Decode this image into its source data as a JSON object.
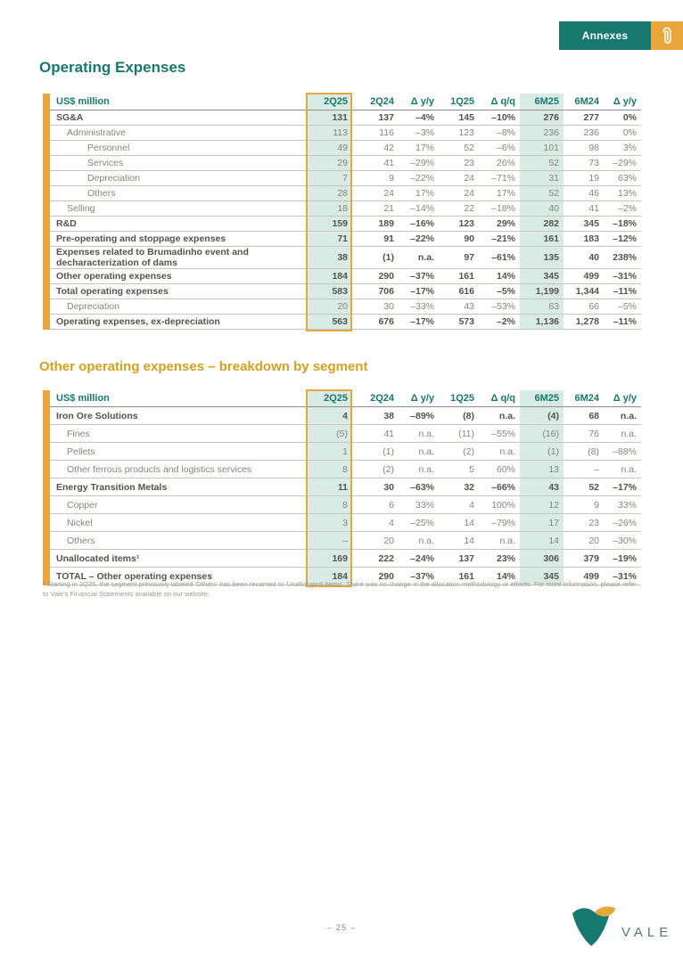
{
  "header": {
    "annexes_label": "Annexes",
    "paperclip_icon": "paperclip"
  },
  "colors": {
    "teal": "#17786F",
    "gold": "#E9A63B",
    "mint": "#D8ECE5",
    "title_gold": "#D6A01C"
  },
  "section1": {
    "title": "Operating Expenses",
    "table": {
      "unit_label": "US$ million",
      "columns": [
        "2Q25",
        "2Q24",
        "Δ y/y",
        "1Q25",
        "Δ q/q",
        "6M25",
        "6M24",
        "Δ y/y"
      ],
      "rows": [
        {
          "label": "SG&A",
          "bold": true,
          "indent": 0,
          "values": [
            "131",
            "137",
            "–4%",
            "145",
            "–10%",
            "276",
            "277",
            "0%"
          ]
        },
        {
          "label": "Administrative",
          "bold": false,
          "indent": 1,
          "values": [
            "113",
            "116",
            "–3%",
            "123",
            "–8%",
            "236",
            "236",
            "0%"
          ]
        },
        {
          "label": "Personnel",
          "bold": false,
          "indent": 2,
          "values": [
            "49",
            "42",
            "17%",
            "52",
            "–6%",
            "101",
            "98",
            "3%"
          ]
        },
        {
          "label": "Services",
          "bold": false,
          "indent": 2,
          "values": [
            "29",
            "41",
            "–29%",
            "23",
            "26%",
            "52",
            "73",
            "–29%"
          ]
        },
        {
          "label": "Depreciation",
          "bold": false,
          "indent": 2,
          "values": [
            "7",
            "9",
            "–22%",
            "24",
            "–71%",
            "31",
            "19",
            "63%"
          ]
        },
        {
          "label": "Others",
          "bold": false,
          "indent": 2,
          "values": [
            "28",
            "24",
            "17%",
            "24",
            "17%",
            "52",
            "46",
            "13%"
          ]
        },
        {
          "label": "Selling",
          "bold": false,
          "indent": 1,
          "values": [
            "18",
            "21",
            "–14%",
            "22",
            "–18%",
            "40",
            "41",
            "–2%"
          ]
        },
        {
          "label": "R&D",
          "bold": true,
          "indent": 0,
          "values": [
            "159",
            "189",
            "–16%",
            "123",
            "29%",
            "282",
            "345",
            "–18%"
          ]
        },
        {
          "label": "Pre-operating and stoppage expenses",
          "bold": true,
          "indent": 0,
          "values": [
            "71",
            "91",
            "–22%",
            "90",
            "–21%",
            "161",
            "183",
            "–12%"
          ]
        },
        {
          "label": "Expenses related to Brumadinho event and decharacterization of dams",
          "bold": true,
          "indent": 0,
          "values": [
            "38",
            "(1)",
            "n.a.",
            "97",
            "–61%",
            "135",
            "40",
            "238%"
          ]
        },
        {
          "label": "Other operating expenses",
          "bold": true,
          "indent": 0,
          "values": [
            "184",
            "290",
            "–37%",
            "161",
            "14%",
            "345",
            "499",
            "–31%"
          ]
        },
        {
          "label": "Total operating expenses",
          "bold": true,
          "indent": 0,
          "values": [
            "583",
            "706",
            "–17%",
            "616",
            "–5%",
            "1,199",
            "1,344",
            "–11%"
          ]
        },
        {
          "label": "Depreciation",
          "bold": false,
          "indent": 1,
          "values": [
            "20",
            "30",
            "–33%",
            "43",
            "–53%",
            "63",
            "66",
            "–5%"
          ]
        },
        {
          "label": "Operating expenses, ex-depreciation",
          "bold": true,
          "indent": 0,
          "values": [
            "563",
            "676",
            "–17%",
            "573",
            "–2%",
            "1,136",
            "1,278",
            "–11%"
          ]
        }
      ]
    }
  },
  "section2": {
    "title": "Other operating expenses – breakdown by segment",
    "table": {
      "unit_label": "US$ million",
      "columns": [
        "2Q25",
        "2Q24",
        "Δ y/y",
        "1Q25",
        "Δ q/q",
        "6M25",
        "6M24",
        "Δ y/y"
      ],
      "rows": [
        {
          "label": "Iron Ore Solutions",
          "bold": true,
          "indent": 0,
          "values": [
            "4",
            "38",
            "–89%",
            "(8)",
            "n.a.",
            "(4)",
            "68",
            "n.a."
          ]
        },
        {
          "label": "Fines",
          "bold": false,
          "indent": 1,
          "values": [
            "(5)",
            "41",
            "n.a.",
            "(11)",
            "–55%",
            "(16)",
            "76",
            "n.a."
          ]
        },
        {
          "label": "Pellets",
          "bold": false,
          "indent": 1,
          "values": [
            "1",
            "(1)",
            "n.a.",
            "(2)",
            "n.a.",
            "(1)",
            "(8)",
            "–88%"
          ]
        },
        {
          "label": "Other ferrous products and logistics services",
          "bold": false,
          "indent": 1,
          "values": [
            "8",
            "(2)",
            "n.a.",
            "5",
            "60%",
            "13",
            "–",
            "n.a."
          ]
        },
        {
          "label": "Energy Transition Metals",
          "bold": true,
          "indent": 0,
          "values": [
            "11",
            "30",
            "–63%",
            "32",
            "–66%",
            "43",
            "52",
            "–17%"
          ]
        },
        {
          "label": "Copper",
          "bold": false,
          "indent": 1,
          "values": [
            "8",
            "6",
            "33%",
            "4",
            "100%",
            "12",
            "9",
            "33%"
          ]
        },
        {
          "label": "Nickel",
          "bold": false,
          "indent": 1,
          "values": [
            "3",
            "4",
            "–25%",
            "14",
            "–79%",
            "17",
            "23",
            "–26%"
          ]
        },
        {
          "label": "Others",
          "bold": false,
          "indent": 1,
          "values": [
            "–",
            "20",
            "n.a.",
            "14",
            "n.a.",
            "14",
            "20",
            "–30%"
          ]
        },
        {
          "label": "Unallocated items¹",
          "bold": true,
          "indent": 0,
          "values": [
            "169",
            "222",
            "–24%",
            "137",
            "23%",
            "306",
            "379",
            "–19%"
          ]
        },
        {
          "label": "TOTAL – Other operating expenses",
          "bold": true,
          "indent": 0,
          "values": [
            "184",
            "290",
            "–37%",
            "161",
            "14%",
            "345",
            "499",
            "–31%"
          ]
        }
      ]
    },
    "footnote": "¹ Starting in 2Q25, the segment previously labeled 'Others' has been renamed to 'Unallocated Items'. There was no change in the allocation methodology or effects. For more information, please refer to Vale's Financial Statements available on our website."
  },
  "footer": {
    "page_number": "– 25 –",
    "brand": "VALE"
  }
}
